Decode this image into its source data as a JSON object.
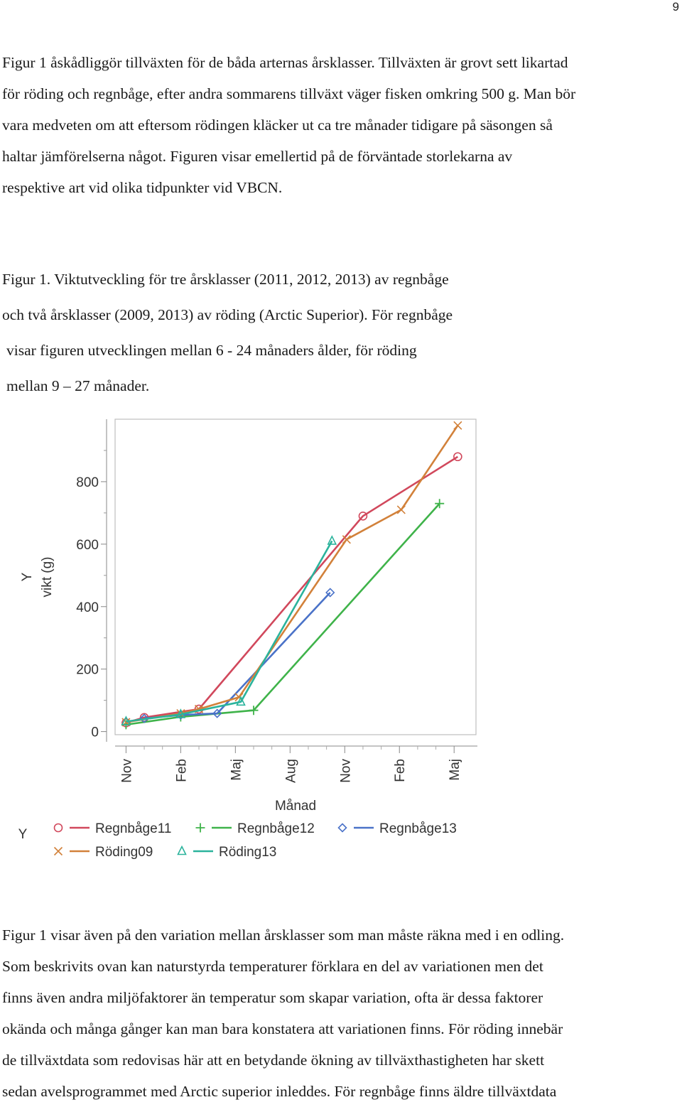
{
  "page_number": "9",
  "paragraph1_lines": [
    "Figur 1 åskådliggör tillväxten för de båda arternas årsklasser. Tillväxten är grovt sett likartad",
    "för röding och regnbåge, efter andra sommarens tillväxt väger fisken omkring 500 g. Man bör",
    "vara medveten om att eftersom rödingen kläcker ut ca tre månader tidigare på säsongen så",
    "haltar jämförelserna något. Figuren visar emellertid på de förväntade storlekarna av",
    "respektive art vid olika tidpunkter vid VBCN."
  ],
  "caption_lines": [
    "Figur 1. Viktutveckling för tre årsklasser (2011, 2012, 2013) av regnbåge",
    "och två årsklasser (2009, 2013) av röding (Arctic Superior). För regnbåge",
    "visar figuren utvecklingen mellan 6 - 24 månaders ålder, för röding",
    "mellan 9 – 27 månader."
  ],
  "chart_data": {
    "type": "line",
    "ylabel_top": "Y",
    "ylabel": "vikt (g)",
    "xlabel": "Månad",
    "legend_title": "Y",
    "ylim": [
      -10,
      1000
    ],
    "y_ticks": [
      0,
      200,
      400,
      600,
      800
    ],
    "x_ticks": [
      "Nov",
      "Feb",
      "Maj",
      "Aug",
      "Nov",
      "Feb",
      "Maj"
    ],
    "x_tick_positions": [
      0,
      3,
      6,
      9,
      12,
      15,
      18
    ],
    "xlim": [
      -0.6,
      19.2
    ],
    "legend_placement": "bottom",
    "series": [
      {
        "name": "Regnbåge11",
        "color": "#d1485c",
        "marker": "circle",
        "points": [
          [
            0,
            28
          ],
          [
            1,
            45
          ],
          [
            4,
            72
          ],
          [
            13,
            690
          ],
          [
            18.2,
            880
          ]
        ]
      },
      {
        "name": "Regnbåge12",
        "color": "#3fb34a",
        "marker": "plus",
        "points": [
          [
            0,
            22
          ],
          [
            3,
            47
          ],
          [
            7,
            68
          ],
          [
            17.2,
            730
          ]
        ]
      },
      {
        "name": "Regnbåge13",
        "color": "#4a72c8",
        "marker": "diamond",
        "points": [
          [
            1,
            42
          ],
          [
            3,
            53
          ],
          [
            5,
            58
          ],
          [
            11.2,
            445
          ]
        ]
      },
      {
        "name": "Röding09",
        "color": "#d2813a",
        "marker": "x",
        "points": [
          [
            0,
            30
          ],
          [
            3,
            58
          ],
          [
            4,
            72
          ],
          [
            6.2,
            110
          ],
          [
            12.1,
            615
          ],
          [
            15.1,
            710
          ],
          [
            18.2,
            980
          ]
        ]
      },
      {
        "name": "Röding13",
        "color": "#2bb39c",
        "marker": "triangle",
        "points": [
          [
            0,
            32
          ],
          [
            3,
            55
          ],
          [
            6.3,
            95
          ],
          [
            11.3,
            610
          ]
        ]
      }
    ]
  },
  "paragraph2_lines": [
    "Figur 1 visar även på den variation mellan årsklasser som man måste räkna med i en odling.",
    "Som beskrivits ovan kan naturstyrda temperaturer förklara en del av variationen men det",
    "finns även andra miljöfaktorer än temperatur som skapar variation, ofta är dessa faktorer",
    "okända och många gånger kan man bara konstatera att variationen finns. För röding innebär",
    "de tillväxtdata som redovisas här att en betydande ökning av tillväxthastigheten har skett",
    "sedan avelsprogrammet med Arctic superior inleddes. För regnbåge finns äldre tillväxtdata"
  ]
}
